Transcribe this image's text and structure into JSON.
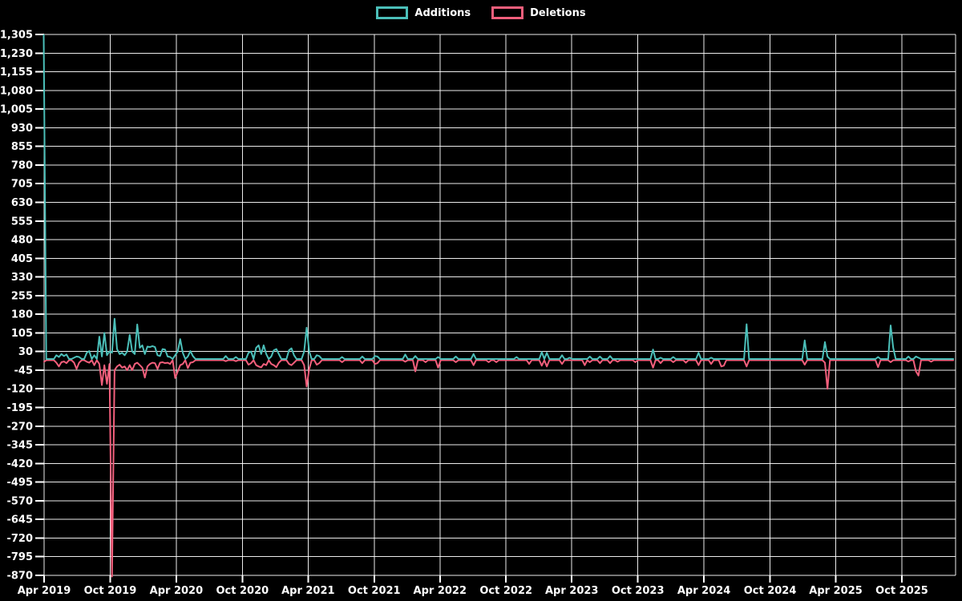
{
  "legend": {
    "items": [
      {
        "label": "Additions",
        "color": "#4BBFB9"
      },
      {
        "label": "Deletions",
        "color": "#F25F7C"
      }
    ]
  },
  "colors": {
    "background": "#000000",
    "grid": "#FFFFFF",
    "text": "#FFFFFF",
    "additions": "#4BBFB9",
    "deletions": "#F25F7C"
  },
  "chart_data": {
    "type": "line",
    "title": "",
    "xlabel": "",
    "ylabel": "",
    "legend_position": "top-center",
    "grid": true,
    "sampling": "weekly",
    "weekly_zero_fill": true,
    "range": {
      "start": "2019-03-31",
      "end": "2026-02-22"
    },
    "y_axis": {
      "min": -870,
      "max": 1305,
      "step": 75,
      "tick_values": [
        1305,
        1230,
        1155,
        1080,
        1005,
        930,
        855,
        780,
        705,
        630,
        555,
        480,
        405,
        330,
        255,
        180,
        105,
        30,
        -45,
        -120,
        -195,
        -270,
        -345,
        -420,
        -495,
        -570,
        -645,
        -720,
        -795,
        -870
      ],
      "tick_labels": [
        "1,305",
        "1,230",
        "1,155",
        "1,080",
        "1,005",
        "930",
        "855",
        "780",
        "705",
        "630",
        "555",
        "480",
        "405",
        "330",
        "255",
        "180",
        "105",
        "30",
        "-45",
        "-120",
        "-195",
        "-270",
        "-345",
        "-420",
        "-495",
        "-570",
        "-645",
        "-720",
        "-795",
        "-870"
      ]
    },
    "x_axis": {
      "ticks": [
        {
          "label": "Apr 2019",
          "date": "2019-04-01"
        },
        {
          "label": "Oct 2019",
          "date": "2019-10-01"
        },
        {
          "label": "Apr 2020",
          "date": "2020-04-01"
        },
        {
          "label": "Oct 2020",
          "date": "2020-10-01"
        },
        {
          "label": "Apr 2021",
          "date": "2021-04-01"
        },
        {
          "label": "Oct 2021",
          "date": "2021-10-01"
        },
        {
          "label": "Apr 2022",
          "date": "2022-04-01"
        },
        {
          "label": "Oct 2022",
          "date": "2022-10-01"
        },
        {
          "label": "Apr 2023",
          "date": "2023-04-01"
        },
        {
          "label": "Oct 2023",
          "date": "2023-10-01"
        },
        {
          "label": "Apr 2024",
          "date": "2024-04-01"
        },
        {
          "label": "Oct 2024",
          "date": "2024-10-01"
        },
        {
          "label": "Apr 2025",
          "date": "2025-04-01"
        },
        {
          "label": "Oct 2025",
          "date": "2025-10-01"
        }
      ]
    },
    "series": [
      {
        "name": "Additions",
        "color": "#4BBFB9",
        "points": [
          [
            "2019-03-31",
            1305
          ],
          [
            "2019-05-05",
            15
          ],
          [
            "2019-05-12",
            8
          ],
          [
            "2019-05-19",
            20
          ],
          [
            "2019-05-26",
            12
          ],
          [
            "2019-06-02",
            18
          ],
          [
            "2019-06-23",
            5
          ],
          [
            "2019-06-30",
            10
          ],
          [
            "2019-07-07",
            8
          ],
          [
            "2019-07-28",
            25
          ],
          [
            "2019-08-04",
            32
          ],
          [
            "2019-08-18",
            15
          ],
          [
            "2019-09-01",
            90
          ],
          [
            "2019-09-08",
            10
          ],
          [
            "2019-09-15",
            105
          ],
          [
            "2019-09-22",
            15
          ],
          [
            "2019-09-29",
            30
          ],
          [
            "2019-10-06",
            25
          ],
          [
            "2019-10-13",
            162
          ],
          [
            "2019-10-20",
            40
          ],
          [
            "2019-10-27",
            20
          ],
          [
            "2019-11-03",
            25
          ],
          [
            "2019-11-10",
            15
          ],
          [
            "2019-11-17",
            30
          ],
          [
            "2019-11-24",
            97
          ],
          [
            "2019-12-01",
            30
          ],
          [
            "2019-12-08",
            20
          ],
          [
            "2019-12-15",
            139
          ],
          [
            "2019-12-22",
            45
          ],
          [
            "2019-12-29",
            55
          ],
          [
            "2020-01-05",
            20
          ],
          [
            "2020-01-12",
            50
          ],
          [
            "2020-01-19",
            48
          ],
          [
            "2020-01-26",
            52
          ],
          [
            "2020-02-02",
            48
          ],
          [
            "2020-02-09",
            15
          ],
          [
            "2020-02-16",
            12
          ],
          [
            "2020-02-23",
            40
          ],
          [
            "2020-03-01",
            38
          ],
          [
            "2020-03-08",
            10
          ],
          [
            "2020-03-15",
            8
          ],
          [
            "2020-03-29",
            15
          ],
          [
            "2020-04-05",
            30
          ],
          [
            "2020-04-12",
            80
          ],
          [
            "2020-04-19",
            25
          ],
          [
            "2020-05-03",
            10
          ],
          [
            "2020-05-10",
            32
          ],
          [
            "2020-05-17",
            12
          ],
          [
            "2020-08-16",
            12
          ],
          [
            "2020-09-13",
            8
          ],
          [
            "2020-10-18",
            25
          ],
          [
            "2020-10-25",
            30
          ],
          [
            "2020-11-08",
            45
          ],
          [
            "2020-11-15",
            55
          ],
          [
            "2020-11-22",
            20
          ],
          [
            "2020-11-29",
            55
          ],
          [
            "2020-12-06",
            20
          ],
          [
            "2020-12-20",
            10
          ],
          [
            "2020-12-27",
            35
          ],
          [
            "2021-01-03",
            40
          ],
          [
            "2021-01-10",
            20
          ],
          [
            "2021-02-07",
            35
          ],
          [
            "2021-02-14",
            43
          ],
          [
            "2021-02-21",
            15
          ],
          [
            "2021-03-21",
            30
          ],
          [
            "2021-03-28",
            126
          ],
          [
            "2021-04-04",
            30
          ],
          [
            "2021-04-25",
            15
          ],
          [
            "2021-05-02",
            12
          ],
          [
            "2021-07-04",
            8
          ],
          [
            "2021-08-29",
            10
          ],
          [
            "2021-10-03",
            12
          ],
          [
            "2021-10-10",
            10
          ],
          [
            "2021-12-26",
            18
          ],
          [
            "2022-01-23",
            12
          ],
          [
            "2022-03-27",
            8
          ],
          [
            "2022-05-15",
            10
          ],
          [
            "2022-07-03",
            20
          ],
          [
            "2022-10-30",
            8
          ],
          [
            "2023-01-08",
            28
          ],
          [
            "2023-01-22",
            25
          ],
          [
            "2023-03-05",
            15
          ],
          [
            "2023-03-26",
            5
          ],
          [
            "2023-05-21",
            10
          ],
          [
            "2023-06-18",
            10
          ],
          [
            "2023-07-16",
            12
          ],
          [
            "2023-11-12",
            38
          ],
          [
            "2023-12-03",
            5
          ],
          [
            "2024-01-07",
            8
          ],
          [
            "2024-03-17",
            25
          ],
          [
            "2024-04-21",
            5
          ],
          [
            "2024-07-28",
            140
          ],
          [
            "2025-01-05",
            75
          ],
          [
            "2025-03-02",
            68
          ],
          [
            "2025-03-09",
            10
          ],
          [
            "2025-07-27",
            8
          ],
          [
            "2025-08-31",
            135
          ],
          [
            "2025-09-07",
            45
          ],
          [
            "2025-10-19",
            10
          ],
          [
            "2025-11-09",
            10
          ],
          [
            "2025-11-16",
            5
          ]
        ]
      },
      {
        "name": "Deletions",
        "color": "#F25F7C",
        "points": [
          [
            "2019-03-31",
            -8
          ],
          [
            "2019-05-05",
            -10
          ],
          [
            "2019-05-12",
            -25
          ],
          [
            "2019-05-19",
            -8
          ],
          [
            "2019-05-26",
            -5
          ],
          [
            "2019-06-02",
            -12
          ],
          [
            "2019-06-23",
            -10
          ],
          [
            "2019-06-30",
            -35
          ],
          [
            "2019-07-07",
            -10
          ],
          [
            "2019-07-28",
            -6
          ],
          [
            "2019-08-04",
            -10
          ],
          [
            "2019-08-18",
            -20
          ],
          [
            "2019-09-01",
            -15
          ],
          [
            "2019-09-08",
            -100
          ],
          [
            "2019-09-15",
            -20
          ],
          [
            "2019-09-22",
            -95
          ],
          [
            "2019-09-29",
            -15
          ],
          [
            "2019-10-06",
            -870
          ],
          [
            "2019-10-13",
            -40
          ],
          [
            "2019-10-20",
            -25
          ],
          [
            "2019-10-27",
            -18
          ],
          [
            "2019-11-03",
            -30
          ],
          [
            "2019-11-10",
            -25
          ],
          [
            "2019-11-17",
            -40
          ],
          [
            "2019-11-24",
            -20
          ],
          [
            "2019-12-01",
            -40
          ],
          [
            "2019-12-08",
            -15
          ],
          [
            "2019-12-15",
            -10
          ],
          [
            "2019-12-22",
            -20
          ],
          [
            "2019-12-29",
            -30
          ],
          [
            "2020-01-05",
            -70
          ],
          [
            "2020-01-12",
            -25
          ],
          [
            "2020-01-19",
            -15
          ],
          [
            "2020-01-26",
            -10
          ],
          [
            "2020-02-02",
            -12
          ],
          [
            "2020-02-09",
            -35
          ],
          [
            "2020-02-16",
            -10
          ],
          [
            "2020-02-23",
            -8
          ],
          [
            "2020-03-01",
            -12
          ],
          [
            "2020-03-08",
            -10
          ],
          [
            "2020-03-15",
            -15
          ],
          [
            "2020-03-29",
            -72
          ],
          [
            "2020-04-05",
            -45
          ],
          [
            "2020-04-12",
            -20
          ],
          [
            "2020-04-19",
            -15
          ],
          [
            "2020-05-03",
            -32
          ],
          [
            "2020-05-10",
            -10
          ],
          [
            "2020-05-17",
            -8
          ],
          [
            "2020-08-16",
            -4
          ],
          [
            "2020-09-13",
            -4
          ],
          [
            "2020-10-18",
            -18
          ],
          [
            "2020-10-25",
            -12
          ],
          [
            "2020-11-08",
            -20
          ],
          [
            "2020-11-15",
            -25
          ],
          [
            "2020-11-22",
            -29
          ],
          [
            "2020-11-29",
            -15
          ],
          [
            "2020-12-06",
            -20
          ],
          [
            "2020-12-20",
            -15
          ],
          [
            "2020-12-27",
            -20
          ],
          [
            "2021-01-03",
            -28
          ],
          [
            "2021-01-10",
            -10
          ],
          [
            "2021-02-07",
            -15
          ],
          [
            "2021-02-14",
            -20
          ],
          [
            "2021-02-21",
            -10
          ],
          [
            "2021-03-21",
            -20
          ],
          [
            "2021-03-28",
            -106
          ],
          [
            "2021-04-04",
            -35
          ],
          [
            "2021-04-25",
            -18
          ],
          [
            "2021-05-02",
            -12
          ],
          [
            "2021-07-04",
            -8
          ],
          [
            "2021-08-29",
            -12
          ],
          [
            "2021-10-03",
            -15
          ],
          [
            "2021-10-10",
            -12
          ],
          [
            "2021-12-26",
            -6
          ],
          [
            "2022-01-23",
            -45
          ],
          [
            "2022-02-20",
            -8
          ],
          [
            "2022-03-27",
            -30
          ],
          [
            "2022-05-15",
            -8
          ],
          [
            "2022-07-03",
            -20
          ],
          [
            "2022-08-14",
            -8
          ],
          [
            "2022-09-04",
            -8
          ],
          [
            "2022-12-04",
            -15
          ],
          [
            "2023-01-08",
            -22
          ],
          [
            "2023-01-22",
            -25
          ],
          [
            "2023-03-05",
            -15
          ],
          [
            "2023-05-07",
            -20
          ],
          [
            "2023-05-21",
            -8
          ],
          [
            "2023-06-18",
            -12
          ],
          [
            "2023-07-16",
            -12
          ],
          [
            "2023-08-06",
            -6
          ],
          [
            "2023-09-24",
            -8
          ],
          [
            "2023-11-12",
            -30
          ],
          [
            "2023-12-03",
            -12
          ],
          [
            "2024-01-07",
            -8
          ],
          [
            "2024-02-11",
            -10
          ],
          [
            "2024-03-17",
            -20
          ],
          [
            "2024-04-21",
            -15
          ],
          [
            "2024-05-19",
            -25
          ],
          [
            "2024-05-26",
            -22
          ],
          [
            "2024-07-28",
            -25
          ],
          [
            "2025-01-05",
            -18
          ],
          [
            "2025-03-02",
            -10
          ],
          [
            "2025-03-09",
            -115
          ],
          [
            "2025-07-27",
            -28
          ],
          [
            "2025-08-31",
            -8
          ],
          [
            "2025-10-19",
            -5
          ],
          [
            "2025-11-09",
            -45
          ],
          [
            "2025-11-16",
            -62
          ],
          [
            "2025-12-21",
            -6
          ]
        ]
      }
    ]
  }
}
